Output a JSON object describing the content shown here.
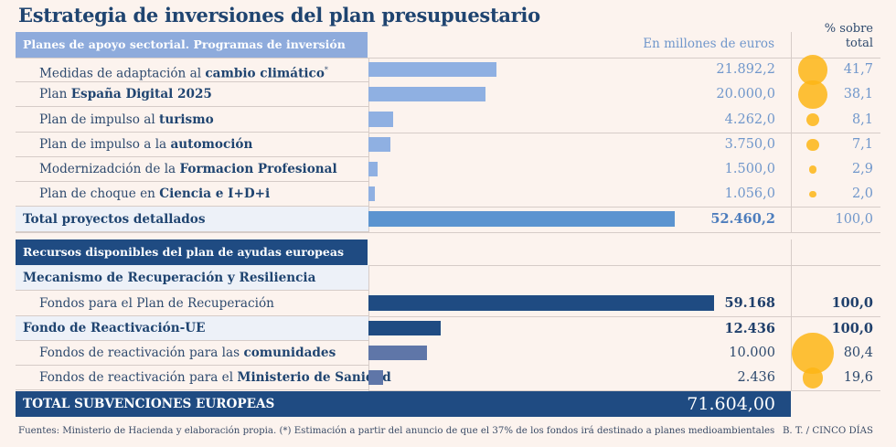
{
  "title": "Estrategia de inversiones del plan presupuestario",
  "upper": {
    "header": "Planes de apoyo sectorial. Programas de inversión",
    "units_label": "En millones de euros",
    "pct_header": [
      "% sobre",
      "total"
    ],
    "rows": [
      {
        "kind": "item",
        "label_parts": [
          {
            "text": "Medidas de adaptación al ",
            "style": "normal"
          },
          {
            "text": "cambio climático",
            "style": "bold"
          },
          {
            "text": "*",
            "style": "sup"
          }
        ],
        "value": 21892.2,
        "value_text": "21.892,2",
        "pct": 41.7,
        "pct_text": "41,7"
      },
      {
        "kind": "item",
        "label_parts": [
          {
            "text": "Plan ",
            "style": "normal"
          },
          {
            "text": "España Digital 2025",
            "style": "bold"
          }
        ],
        "value": 20000.0,
        "value_text": "20.000,0",
        "pct": 38.1,
        "pct_text": "38,1"
      },
      {
        "kind": "item",
        "label_parts": [
          {
            "text": "Plan de impulso al ",
            "style": "normal"
          },
          {
            "text": "turismo",
            "style": "bold"
          }
        ],
        "value": 4262.0,
        "value_text": "4.262,0",
        "pct": 8.1,
        "pct_text": "8,1"
      },
      {
        "kind": "item",
        "label_parts": [
          {
            "text": "Plan de impulso a la ",
            "style": "normal"
          },
          {
            "text": "automoción",
            "style": "bold"
          }
        ],
        "value": 3750.0,
        "value_text": "3.750,0",
        "pct": 7.1,
        "pct_text": "7,1"
      },
      {
        "kind": "item",
        "label_parts": [
          {
            "text": "Modernizadción de la ",
            "style": "normal"
          },
          {
            "text": "Formacion Profesional",
            "style": "bold"
          }
        ],
        "value": 1500.0,
        "value_text": "1.500,0",
        "pct": 2.9,
        "pct_text": "2,9"
      },
      {
        "kind": "item",
        "label_parts": [
          {
            "text": "Plan de choque en ",
            "style": "normal"
          },
          {
            "text": "Ciencia e I+D+i",
            "style": "bold"
          }
        ],
        "value": 1056.0,
        "value_text": "1.056,0",
        "pct": 2.0,
        "pct_text": "2,0"
      },
      {
        "kind": "total",
        "label_parts": [
          {
            "text": "Total proyectos detallados",
            "style": "normal"
          }
        ],
        "value": 52460.2,
        "value_text": "52.460,2",
        "pct": null,
        "pct_text": "100,0"
      }
    ]
  },
  "lower": {
    "header": "Recursos disponibles del plan de ayudas europeas",
    "rows": [
      {
        "kind": "group",
        "label_parts": [
          {
            "text": "Mecanismo de Recuperación y Resiliencia",
            "style": "normal"
          }
        ],
        "value": null,
        "value_text": "",
        "pct": null,
        "pct_text": ""
      },
      {
        "kind": "item-strong",
        "label_parts": [
          {
            "text": "Fondos para el Plan de Recuperación",
            "style": "normal"
          }
        ],
        "value": 59168,
        "value_text": "59.168",
        "pct": null,
        "pct_text": "100,0"
      },
      {
        "kind": "group",
        "label_parts": [
          {
            "text": "Fondo de Reactivación-UE",
            "style": "normal"
          }
        ],
        "value": 12436,
        "value_text": "12.436",
        "pct": null,
        "pct_text": "100,0"
      },
      {
        "kind": "item",
        "label_parts": [
          {
            "text": "Fondos de reactivación para las ",
            "style": "normal"
          },
          {
            "text": "comunidades",
            "style": "bold"
          }
        ],
        "value": 10000,
        "value_text": "10.000",
        "pct": 80.4,
        "pct_text": "80,4"
      },
      {
        "kind": "item",
        "label_parts": [
          {
            "text": "Fondos de reactivación para el ",
            "style": "normal"
          },
          {
            "text": "Ministerio de Sanidad",
            "style": "bold"
          }
        ],
        "value": 2436,
        "value_text": "2.436",
        "pct": 19.6,
        "pct_text": "19,6"
      }
    ],
    "total": {
      "label": "TOTAL SUBVENCIONES EUROPEAS",
      "value": 71604.0,
      "value_text": "71.604,00"
    }
  },
  "footer": {
    "source": "Fuentes: Ministerio de Hacienda y elaboración propia. (*) Estimación a partir del anuncio de que el 37% de los fondos irá destinado a planes medioambientales",
    "credit": "B. T.  / CINCO DÍAS"
  },
  "colors": {
    "background": "#fcf3ee",
    "title": "#1f4470",
    "upper_header": "#8eabdc",
    "lower_header": "#1f4b82",
    "upper_bar": "#8fb0e2",
    "upper_total_bar": "#5b94d0",
    "lower_bar_strong": "#1f4b82",
    "lower_bar_sub": "#5f76a8",
    "circle": "#fdb515",
    "upper_value_text": "#7097cb",
    "upper_total_value_text": "#4d7dbd",
    "lower_value_text": "#2e4a6e",
    "lower_value_strong_text": "#1f3f6b"
  },
  "chart_data": {
    "type": "bar",
    "title": "Estrategia de inversiones del plan presupuestario",
    "xlabel": "En millones de euros",
    "ylabel": "",
    "orientation": "horizontal",
    "groups": [
      {
        "name": "Planes de apoyo sectorial. Programas de inversión",
        "categories": [
          "Medidas de adaptación al cambio climático*",
          "Plan España Digital 2025",
          "Plan de impulso al turismo",
          "Plan de impulso a la automoción",
          "Modernizadción de la Formacion Profesional",
          "Plan de choque en Ciencia e I+D+i",
          "Total proyectos detallados"
        ],
        "values": [
          21892.2,
          20000.0,
          4262.0,
          3750.0,
          1500.0,
          1056.0,
          52460.2
        ],
        "pct_of_total": [
          41.7,
          38.1,
          8.1,
          7.1,
          2.9,
          2.0,
          100.0
        ]
      },
      {
        "name": "Recursos disponibles del plan de ayudas europeas",
        "categories": [
          "Fondos para el Plan de Recuperación",
          "Fondo de Reactivación-UE",
          "Fondos de reactivación para las comunidades",
          "Fondos de reactivación para el Ministerio de Sanidad",
          "TOTAL SUBVENCIONES EUROPEAS"
        ],
        "values": [
          59168,
          12436,
          10000,
          2436,
          71604.0
        ],
        "pct_of_total": [
          100.0,
          100.0,
          80.4,
          19.6,
          null
        ]
      }
    ],
    "bubble_series": {
      "name": "% sobre total",
      "encoding": "circle area"
    },
    "grid": false,
    "legend": "none"
  }
}
